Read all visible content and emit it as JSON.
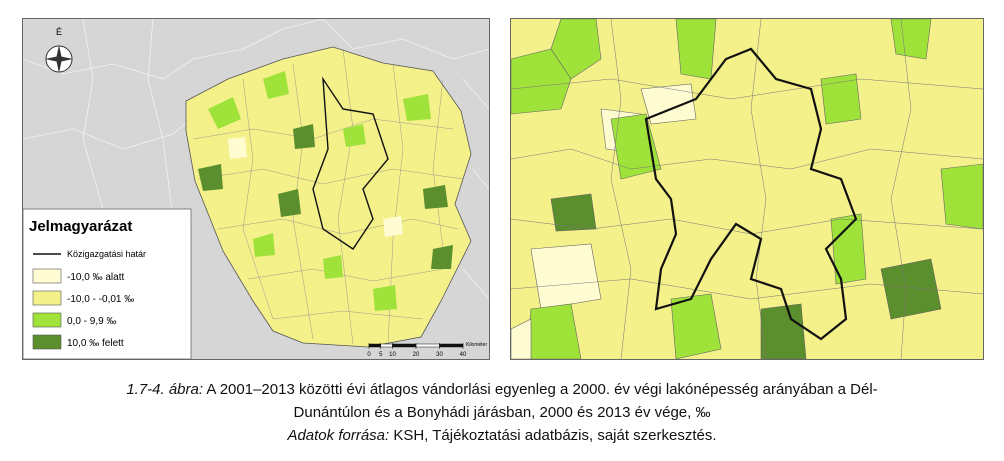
{
  "left_map": {
    "north_label": "É",
    "legend": {
      "title": "Jelmagyarázat",
      "boundary_label": "Közigazgatási határ",
      "items": [
        {
          "label": "-10,0 ‰ alatt",
          "color": "#fffcd2"
        },
        {
          "label": "-10,0 -  -0,01 ‰",
          "color": "#f4f08a"
        },
        {
          "label": "0,0 - 9,9 ‰",
          "color": "#9fe33a"
        },
        {
          "label": "10,0 ‰ felett",
          "color": "#5b8e2c"
        }
      ]
    },
    "scale": {
      "ticks": [
        0,
        5,
        10,
        20,
        30,
        40
      ],
      "unit": "Kilométer"
    }
  },
  "caption": {
    "figure_label": "1.7-4. ábra:",
    "line1": " A 2001–2013 közötti évi átlagos vándorlási egyenleg a 2000. év végi lakónépesség arányában a Dél-",
    "line2": "Dunántúlon és a Bonyhádi járásban, 2000 és 2013 év vége, ‰",
    "source_label": "Adatok forrása:",
    "source": " KSH, Tájékoztatási adatbázis, saját szerkesztés."
  }
}
